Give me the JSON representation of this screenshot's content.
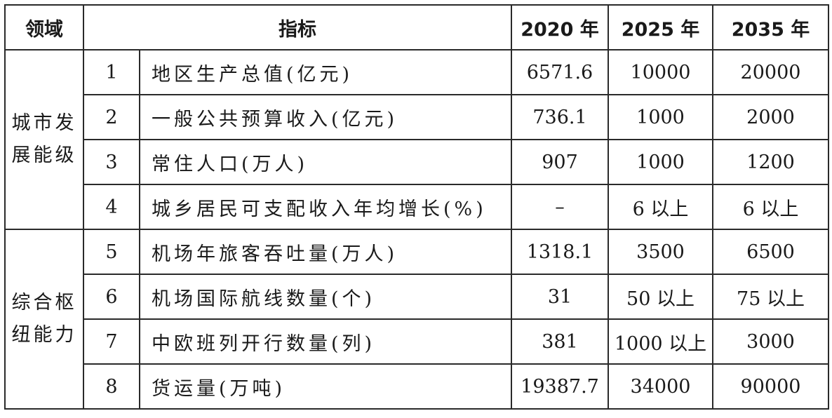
{
  "headers": {
    "domain": "领域",
    "indicator": "指标",
    "y2020": "2020 年",
    "y2025": "2025 年",
    "y2035": "2035 年"
  },
  "groups": [
    {
      "domain": "城市发展能级",
      "rows": [
        {
          "no": "1",
          "indicator": "地区生产总值(亿元)",
          "y2020": "6571.6",
          "y2025": "10000",
          "y2035": "20000"
        },
        {
          "no": "2",
          "indicator": "一般公共预算收入(亿元)",
          "y2020": "736.1",
          "y2025": "1000",
          "y2035": "2000"
        },
        {
          "no": "3",
          "indicator": "常住人口(万人)",
          "y2020": "907",
          "y2025": "1000",
          "y2035": "1200"
        },
        {
          "no": "4",
          "indicator": "城乡居民可支配收入年均增长(%)",
          "y2020": "–",
          "y2025": "6 以上",
          "y2035": "6 以上"
        }
      ]
    },
    {
      "domain": "综合枢纽能力",
      "rows": [
        {
          "no": "5",
          "indicator": "机场年旅客吞吐量(万人)",
          "y2020": "1318.1",
          "y2025": "3500",
          "y2035": "6500"
        },
        {
          "no": "6",
          "indicator": "机场国际航线数量(个)",
          "y2020": "31",
          "y2025": "50 以上",
          "y2035": "75 以上"
        },
        {
          "no": "7",
          "indicator": "中欧班列开行数量(列)",
          "y2020": "381",
          "y2025": "1000 以上",
          "y2035": "3000"
        },
        {
          "no": "8",
          "indicator": "货运量(万吨)",
          "y2020": "19387.7",
          "y2025": "34000",
          "y2035": "90000"
        }
      ]
    }
  ]
}
